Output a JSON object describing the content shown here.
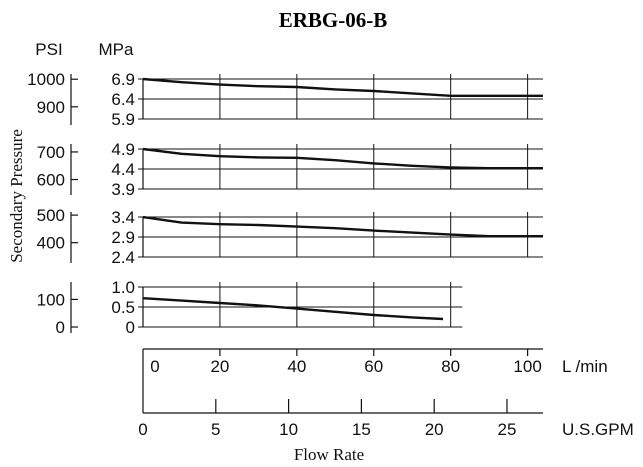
{
  "chart_data": {
    "type": "line",
    "title": "ERBG-06-B",
    "ylabel": "Secondary Pressure",
    "xlabel": "Flow Rate",
    "left_unit_label": "PSI",
    "right_unit_label": "MPa",
    "x_primary": {
      "unit": "L /min",
      "range": [
        0,
        104
      ],
      "ticks": [
        "0",
        "20",
        "40",
        "60",
        "80",
        "100"
      ]
    },
    "x_secondary": {
      "unit": "U.S.GPM",
      "range": [
        0,
        27.5
      ],
      "ticks": [
        "0",
        "5",
        "10",
        "15",
        "20",
        "25"
      ]
    },
    "grid": true,
    "panels": [
      {
        "mpa_ticks": [
          "6.9",
          "6.4",
          "5.9"
        ],
        "psi_ticks": [
          "1000",
          "900"
        ],
        "ylim_mpa": [
          5.9,
          6.9
        ],
        "x_max": 104,
        "series": {
          "x": [
            0,
            10,
            20,
            30,
            40,
            50,
            60,
            70,
            80,
            90,
            100,
            104
          ],
          "y": [
            6.9,
            6.82,
            6.76,
            6.72,
            6.7,
            6.64,
            6.6,
            6.54,
            6.48,
            6.48,
            6.48,
            6.48
          ]
        }
      },
      {
        "mpa_ticks": [
          "4.9",
          "4.4",
          "3.9"
        ],
        "psi_ticks": [
          "700",
          "600"
        ],
        "ylim_mpa": [
          3.9,
          4.9
        ],
        "x_max": 104,
        "series": {
          "x": [
            0,
            10,
            20,
            30,
            40,
            50,
            60,
            70,
            80,
            90,
            100,
            104
          ],
          "y": [
            4.9,
            4.78,
            4.72,
            4.69,
            4.68,
            4.62,
            4.54,
            4.48,
            4.44,
            4.42,
            4.42,
            4.42
          ]
        }
      },
      {
        "mpa_ticks": [
          "3.4",
          "2.9",
          "2.4"
        ],
        "psi_ticks": [
          "500",
          "400"
        ],
        "ylim_mpa": [
          2.4,
          3.4
        ],
        "x_max": 104,
        "series": {
          "x": [
            0,
            10,
            20,
            30,
            40,
            50,
            60,
            70,
            80,
            90,
            100,
            104
          ],
          "y": [
            3.4,
            3.26,
            3.22,
            3.2,
            3.16,
            3.12,
            3.06,
            3.01,
            2.96,
            2.92,
            2.92,
            2.92
          ]
        }
      },
      {
        "mpa_ticks": [
          "1.0",
          "0.5",
          "0"
        ],
        "psi_ticks": [
          "100",
          "0"
        ],
        "ylim_mpa": [
          0,
          1.0
        ],
        "x_max": 83,
        "series": {
          "x": [
            0,
            10,
            20,
            30,
            40,
            50,
            60,
            70,
            78
          ],
          "y": [
            0.72,
            0.66,
            0.6,
            0.54,
            0.46,
            0.38,
            0.3,
            0.24,
            0.2
          ]
        }
      }
    ]
  }
}
